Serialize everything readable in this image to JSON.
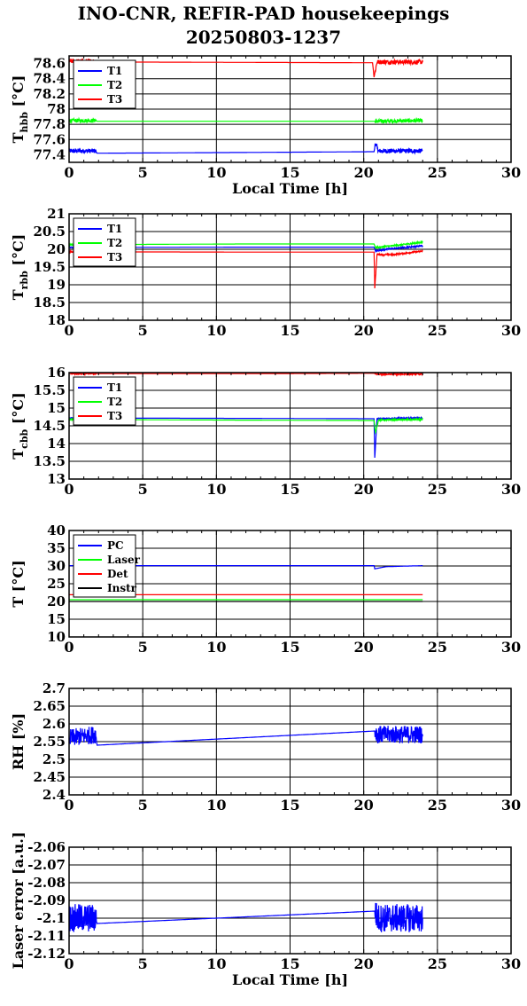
{
  "title_line1": "INO-CNR, REFIR-PAD housekeepings",
  "title_line2": "20250803-1237",
  "colors": {
    "blue": "#0000ff",
    "green": "#00ff00",
    "red": "#ff0000",
    "black": "#000000"
  },
  "chart_data": [
    {
      "type": "line",
      "ylabel": "T_hbb [°C]",
      "ylabel_main": "T",
      "ylabel_sub": "hbb",
      "ylabel_tail": " [°C]",
      "xlabel": "Local Time [h]",
      "xlim": [
        0,
        30
      ],
      "ylim": [
        77.3,
        78.7
      ],
      "xticks": [
        0,
        5,
        10,
        15,
        20,
        25,
        30
      ],
      "yticks": [
        "77.4",
        "77.6",
        "77.8",
        "78",
        "78.2",
        "78.4",
        "78.6"
      ],
      "grid": true,
      "legend_position": "top-left",
      "series": [
        {
          "name": "T1",
          "color": "#0000ff",
          "noise": 0.03,
          "points": [
            [
              0,
              77.45
            ],
            [
              1.8,
              77.45
            ],
            [
              1.9,
              77.42
            ],
            [
              12,
              77.43
            ],
            [
              20.7,
              77.44
            ],
            [
              20.8,
              77.55
            ],
            [
              21.0,
              77.45
            ],
            [
              24,
              77.45
            ]
          ]
        },
        {
          "name": "T2",
          "color": "#00ff00",
          "noise": 0.025,
          "points": [
            [
              0,
              77.85
            ],
            [
              1.8,
              77.85
            ],
            [
              1.9,
              77.84
            ],
            [
              20.7,
              77.84
            ],
            [
              20.8,
              77.84
            ],
            [
              24,
              77.85
            ]
          ]
        },
        {
          "name": "T3",
          "color": "#ff0000",
          "noise": 0.03,
          "points": [
            [
              0,
              78.63
            ],
            [
              1.8,
              78.63
            ],
            [
              1.9,
              78.62
            ],
            [
              20.6,
              78.61
            ],
            [
              20.7,
              78.42
            ],
            [
              20.9,
              78.62
            ],
            [
              24,
              78.62
            ]
          ]
        }
      ]
    },
    {
      "type": "line",
      "ylabel": "T_rbb [°C]",
      "ylabel_main": "T",
      "ylabel_sub": "rbb",
      "ylabel_tail": " [°C]",
      "xlabel": "",
      "xlim": [
        0,
        30
      ],
      "ylim": [
        18,
        21
      ],
      "xticks": [
        0,
        5,
        10,
        15,
        20,
        25,
        30
      ],
      "yticks": [
        "18",
        "18.5",
        "19",
        "19.5",
        "20",
        "20.5",
        "21"
      ],
      "grid": true,
      "legend_position": "top-left",
      "series": [
        {
          "name": "T1",
          "color": "#0000ff",
          "noise": 0.02,
          "points": [
            [
              0,
              20.05
            ],
            [
              12,
              20.06
            ],
            [
              20.7,
              20.06
            ],
            [
              20.8,
              19.95
            ],
            [
              21.5,
              20.0
            ],
            [
              24,
              20.1
            ]
          ]
        },
        {
          "name": "T2",
          "color": "#00ff00",
          "noise": 0.02,
          "points": [
            [
              0,
              20.13
            ],
            [
              12,
              20.15
            ],
            [
              20.7,
              20.15
            ],
            [
              20.8,
              20.05
            ],
            [
              22,
              20.1
            ],
            [
              24,
              20.2
            ]
          ]
        },
        {
          "name": "T3",
          "color": "#ff0000",
          "noise": 0.02,
          "points": [
            [
              0,
              19.93
            ],
            [
              12,
              19.92
            ],
            [
              20.7,
              19.92
            ],
            [
              20.75,
              18.9
            ],
            [
              20.9,
              19.85
            ],
            [
              22,
              19.85
            ],
            [
              24,
              19.95
            ]
          ]
        }
      ]
    },
    {
      "type": "line",
      "ylabel": "T_cbb [°C]",
      "ylabel_main": "T",
      "ylabel_sub": "cbb",
      "ylabel_tail": " [°C]",
      "xlabel": "",
      "xlim": [
        0,
        30
      ],
      "ylim": [
        13,
        16
      ],
      "xticks": [
        0,
        5,
        10,
        15,
        20,
        25,
        30
      ],
      "yticks": [
        "13",
        "13.5",
        "14",
        "14.5",
        "15",
        "15.5",
        "16"
      ],
      "grid": true,
      "legend_position": "top-left",
      "series": [
        {
          "name": "T1",
          "color": "#0000ff",
          "noise": 0.02,
          "points": [
            [
              0,
              14.72
            ],
            [
              12,
              14.71
            ],
            [
              20.7,
              14.7
            ],
            [
              20.75,
              13.6
            ],
            [
              20.9,
              14.7
            ],
            [
              24,
              14.72
            ]
          ]
        },
        {
          "name": "T2",
          "color": "#00ff00",
          "noise": 0.02,
          "points": [
            [
              0,
              14.68
            ],
            [
              12,
              14.66
            ],
            [
              20.7,
              14.65
            ],
            [
              20.8,
              14.3
            ],
            [
              21.0,
              14.66
            ],
            [
              24,
              14.68
            ]
          ]
        },
        {
          "name": "T3",
          "color": "#ff0000",
          "noise": 0.02,
          "points": [
            [
              0,
              15.97
            ],
            [
              12,
              15.97
            ],
            [
              20.7,
              15.98
            ],
            [
              20.9,
              15.95
            ],
            [
              24,
              15.96
            ]
          ]
        }
      ]
    },
    {
      "type": "line",
      "ylabel": "T [°C]",
      "ylabel_main": "T [°C]",
      "ylabel_sub": "",
      "ylabel_tail": "",
      "xlabel": "",
      "xlim": [
        0,
        30
      ],
      "ylim": [
        10,
        40
      ],
      "xticks": [
        0,
        5,
        10,
        15,
        20,
        25,
        30
      ],
      "yticks": [
        "10",
        "15",
        "20",
        "25",
        "30",
        "35",
        "40"
      ],
      "grid": true,
      "legend_position": "top-left",
      "series": [
        {
          "name": "PC",
          "color": "#0000ff",
          "noise": 0,
          "points": [
            [
              0,
              30.1
            ],
            [
              20.7,
              30.1
            ],
            [
              20.75,
              29.2
            ],
            [
              21.5,
              29.8
            ],
            [
              24,
              30.1
            ]
          ]
        },
        {
          "name": "Laser",
          "color": "#00ff00",
          "noise": 0,
          "points": [
            [
              0,
              20.5
            ],
            [
              24,
              20.5
            ]
          ]
        },
        {
          "name": "Det",
          "color": "#ff0000",
          "noise": 0,
          "points": [
            [
              0,
              21.9
            ],
            [
              24,
              21.9
            ]
          ]
        },
        {
          "name": "Instr",
          "color": "#000000",
          "noise": 0,
          "points": [
            [
              0,
              20.0
            ],
            [
              24,
              20.0
            ]
          ]
        }
      ]
    },
    {
      "type": "line",
      "ylabel": "RH [%]",
      "ylabel_main": "RH [%]",
      "ylabel_sub": "",
      "ylabel_tail": "",
      "xlabel": "",
      "xlim": [
        0,
        30
      ],
      "ylim": [
        2.4,
        2.7
      ],
      "xticks": [
        0,
        5,
        10,
        15,
        20,
        25,
        30
      ],
      "yticks": [
        "2.4",
        "2.45",
        "2.5",
        "2.55",
        "2.6",
        "2.65",
        "2.7"
      ],
      "grid": true,
      "legend_position": "none",
      "series": [
        {
          "name": "",
          "color": "#0000ff",
          "noise": 0.025,
          "points": [
            [
              0,
              2.56
            ],
            [
              1.8,
              2.57
            ],
            [
              1.9,
              2.54
            ],
            [
              20.8,
              2.58
            ],
            [
              20.9,
              2.57
            ],
            [
              24,
              2.57
            ]
          ]
        }
      ]
    },
    {
      "type": "line",
      "ylabel": "Laser error [a.u.]",
      "ylabel_main": "Laser error [a.u.]",
      "ylabel_sub": "",
      "ylabel_tail": "",
      "xlabel": "Local Time [h]",
      "xlim": [
        0,
        30
      ],
      "ylim": [
        -2.12,
        -2.06
      ],
      "xticks": [
        0,
        5,
        10,
        15,
        20,
        25,
        30
      ],
      "yticks": [
        "-2.12",
        "-2.11",
        "-2.1",
        "-2.09",
        "-2.08",
        "-2.07",
        "-2.06"
      ],
      "grid": true,
      "legend_position": "none",
      "series": [
        {
          "name": "",
          "color": "#0000ff",
          "noise": 0.008,
          "points": [
            [
              0,
              -2.1
            ],
            [
              1.8,
              -2.1
            ],
            [
              1.9,
              -2.103
            ],
            [
              20.8,
              -2.096
            ],
            [
              20.9,
              -2.1
            ],
            [
              24,
              -2.1
            ]
          ]
        }
      ]
    }
  ]
}
